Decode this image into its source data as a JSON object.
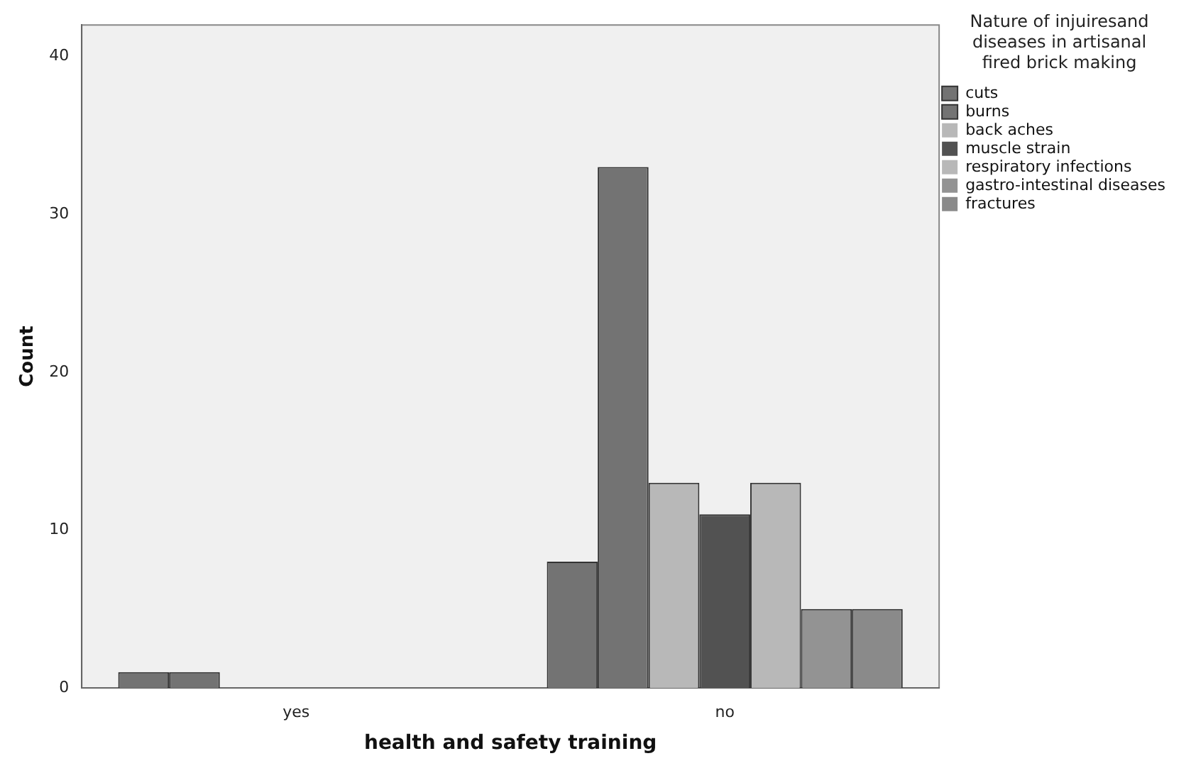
{
  "chart_data": {
    "type": "bar",
    "xlabel": "health and safety training",
    "ylabel": "Count",
    "legend_title": "Nature of injuiresand diseases in artisanal fired brick making",
    "categories": [
      "yes",
      "no"
    ],
    "series": [
      {
        "name": "cuts",
        "color": "#737373",
        "values": [
          1,
          8
        ]
      },
      {
        "name": "burns",
        "color": "#737373",
        "values": [
          1,
          33
        ]
      },
      {
        "name": "back aches",
        "color": "#b8b8b8",
        "values": [
          0,
          13
        ]
      },
      {
        "name": "muscle strain",
        "color": "#525252",
        "values": [
          0,
          11
        ]
      },
      {
        "name": "respiratory infections",
        "color": "#b8b8b8",
        "values": [
          0,
          13
        ]
      },
      {
        "name": "gastro-intestinal diseases",
        "color": "#939393",
        "values": [
          0,
          5
        ]
      },
      {
        "name": "fractures",
        "color": "#8a8a8a",
        "values": [
          0,
          5
        ]
      }
    ],
    "ylim": [
      0,
      42
    ],
    "yticks": [
      0,
      10,
      20,
      30,
      40
    ],
    "grid": false,
    "legend": "right"
  }
}
